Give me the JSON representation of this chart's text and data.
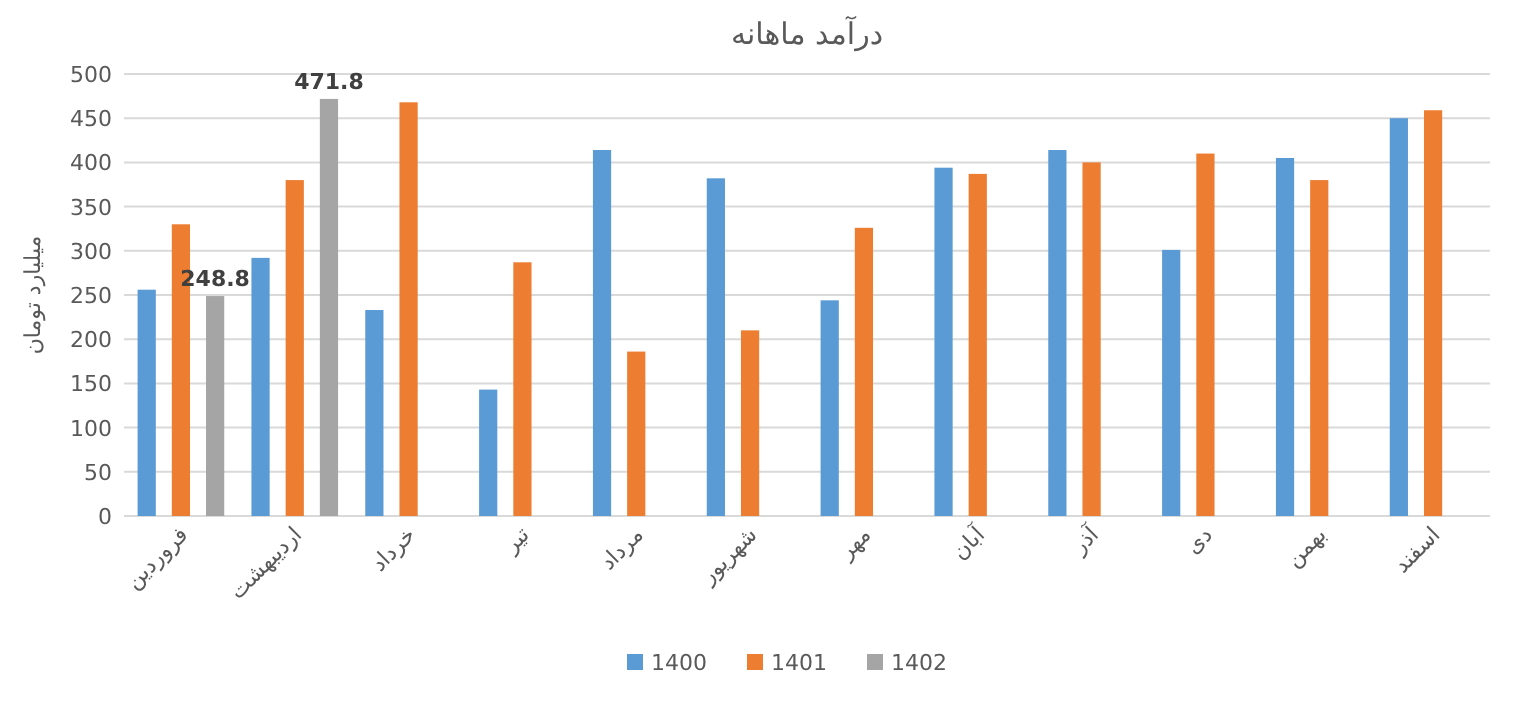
{
  "chart_data": {
    "type": "bar",
    "title": "درآمد ماهانه",
    "ylabel": "میلیارد تومان",
    "categories": [
      "فروردین",
      "اردیبهشت",
      "خرداد",
      "تیر",
      "مرداد",
      "شهریور",
      "مهر",
      "آبان",
      "آذر",
      "دی",
      "بهمن",
      "اسفند"
    ],
    "series": [
      {
        "name": "1400",
        "color": "#5b9bd5",
        "values": [
          256,
          292,
          233,
          143,
          414,
          382,
          244,
          394,
          414,
          301,
          405,
          450
        ]
      },
      {
        "name": "1401",
        "color": "#ed7d31",
        "values": [
          330,
          380,
          468,
          287,
          186,
          210,
          326,
          387,
          400,
          410,
          380,
          459
        ]
      },
      {
        "name": "1402",
        "color": "#a5a5a5",
        "values": [
          248.8,
          471.8,
          null,
          null,
          null,
          null,
          null,
          null,
          null,
          null,
          null,
          null
        ],
        "value_labels": [
          "248.8",
          "471.8",
          null,
          null,
          null,
          null,
          null,
          null,
          null,
          null,
          null,
          null
        ]
      }
    ],
    "ylim": [
      0,
      500
    ],
    "yticks": [
      0,
      50,
      100,
      150,
      200,
      250,
      300,
      350,
      400,
      450,
      500
    ],
    "grid": "y",
    "legend": "bottom"
  }
}
